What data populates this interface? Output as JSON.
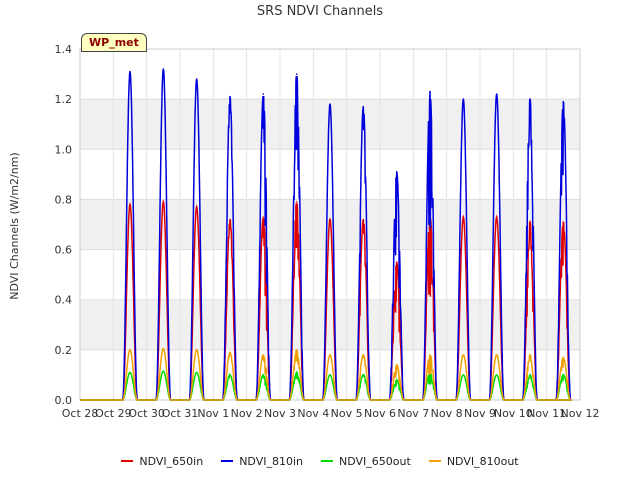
{
  "chart_data": {
    "type": "line",
    "title": "SRS NDVI Channels",
    "ylabel": "NDVI Channels (W/m2/nm)",
    "xlabel": "",
    "badge": "WP_met",
    "ylim": [
      0,
      1.4
    ],
    "xlim": [
      0,
      15
    ],
    "yticks": [
      "0.0",
      "0.2",
      "0.4",
      "0.6",
      "0.8",
      "1.0",
      "1.2",
      "1.4"
    ],
    "xticks": [
      "Oct 28",
      "Oct 29",
      "Oct 30",
      "Oct 31",
      "Nov 1",
      "Nov 2",
      "Nov 3",
      "Nov 4",
      "Nov 5",
      "Nov 6",
      "Nov 7",
      "Nov 8",
      "Nov 9",
      "Nov 10",
      "Nov 11",
      "Nov 12"
    ],
    "grid": "horizontal bands",
    "legend_position": "bottom",
    "day_peak_center": 0.5,
    "day_peak_halfwidth": 0.22,
    "series": [
      {
        "name": "NDVI_650in",
        "color": "#e00000",
        "peaks": [
          0.78,
          0.79,
          0.77,
          0.72,
          0.73,
          0.79,
          0.72,
          0.72,
          0.55,
          0.74,
          0.73,
          0.73,
          0.71,
          0.71
        ]
      },
      {
        "name": "NDVI_810in",
        "color": "#0000dd",
        "peaks": [
          1.31,
          1.32,
          1.28,
          1.21,
          1.22,
          1.3,
          1.18,
          1.17,
          0.91,
          1.23,
          1.2,
          1.22,
          1.2,
          1.19
        ]
      },
      {
        "name": "NDVI_650out",
        "color": "#00dd00",
        "peaks": [
          0.11,
          0.115,
          0.11,
          0.1,
          0.1,
          0.11,
          0.1,
          0.1,
          0.08,
          0.11,
          0.1,
          0.1,
          0.1,
          0.1
        ]
      },
      {
        "name": "NDVI_810out",
        "color": "#f0a000",
        "peaks": [
          0.2,
          0.205,
          0.2,
          0.19,
          0.18,
          0.2,
          0.18,
          0.18,
          0.14,
          0.18,
          0.18,
          0.18,
          0.18,
          0.17
        ]
      }
    ]
  }
}
